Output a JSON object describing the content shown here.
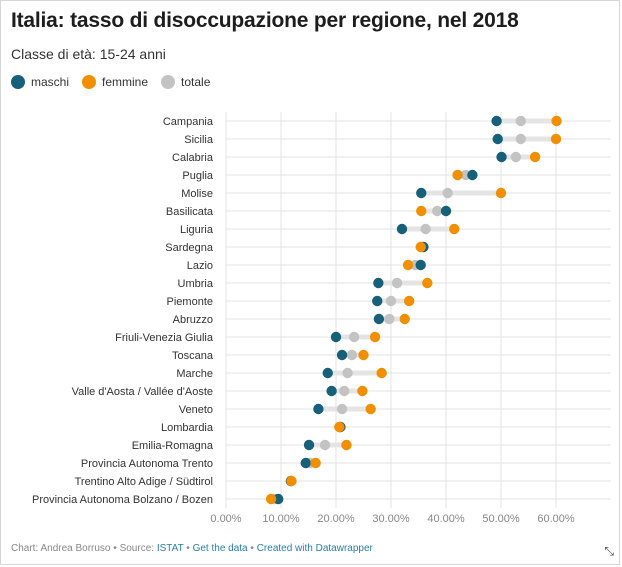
{
  "title": "Italia: tasso di disoccupazione per regione, nel 2018",
  "subtitle": "Classe di età: 15-24 anni",
  "footer": {
    "credit": "Chart: Andrea Borruso",
    "source_prefix": "Source:",
    "source_link": "ISTAT",
    "get_data": "Get the data",
    "created_with": "Created with Datawrapper",
    "sep": "•"
  },
  "colors": {
    "maschi": "#17607a",
    "femmine": "#f18f01",
    "totale": "#c3c3c3",
    "range_line": "#e4e4e4",
    "grid": "#e3e3e3"
  },
  "chart_data": {
    "type": "dot-range",
    "title": "Italia: tasso di disoccupazione per regione, nel 2018",
    "subtitle": "Classe di età: 15-24 anni",
    "xlim": [
      0,
      70
    ],
    "x_ticks": [
      0,
      10,
      20,
      30,
      40,
      50,
      60
    ],
    "x_tick_labels": [
      "0.00%",
      "10.00%",
      "20.00%",
      "30.00%",
      "40.00%",
      "50.00%",
      "60.00%"
    ],
    "grid": true,
    "legend": "top-left",
    "series": [
      {
        "name": "maschi",
        "key": "maschi",
        "color": "#17607a"
      },
      {
        "name": "femmine",
        "key": "femmine",
        "color": "#f18f01"
      },
      {
        "name": "totale",
        "key": "totale",
        "color": "#c3c3c3"
      }
    ],
    "categories": [
      "Campania",
      "Sicilia",
      "Calabria",
      "Puglia",
      "Molise",
      "Basilicata",
      "Liguria",
      "Sardegna",
      "Lazio",
      "Umbria",
      "Piemonte",
      "Abruzzo",
      "Friuli-Venezia Giulia",
      "Toscana",
      "Marche",
      "Valle d'Aosta / Vallée d'Aoste",
      "Veneto",
      "Lombardia",
      "Emilia-Romagna",
      "Provincia Autonoma Trento",
      "Trentino Alto Adige / Südtirol",
      "Provincia Autonoma Bolzano / Bozen"
    ],
    "rows": [
      {
        "maschi": 49.2,
        "femmine": 60.1,
        "totale": 53.6
      },
      {
        "maschi": 49.4,
        "femmine": 60.0,
        "totale": 53.6
      },
      {
        "maschi": 50.1,
        "femmine": 56.2,
        "totale": 52.7
      },
      {
        "maschi": 44.8,
        "femmine": 42.1,
        "totale": 43.6
      },
      {
        "maschi": 35.5,
        "femmine": 50.0,
        "totale": 40.3
      },
      {
        "maschi": 40.0,
        "femmine": 35.5,
        "totale": 38.4
      },
      {
        "maschi": 32.0,
        "femmine": 41.5,
        "totale": 36.3
      },
      {
        "maschi": 35.9,
        "femmine": 35.4,
        "totale": 35.6
      },
      {
        "maschi": 35.4,
        "femmine": 33.1,
        "totale": 34.4
      },
      {
        "maschi": 27.7,
        "femmine": 36.6,
        "totale": 31.1
      },
      {
        "maschi": 27.5,
        "femmine": 33.3,
        "totale": 30.0
      },
      {
        "maschi": 27.8,
        "femmine": 32.5,
        "totale": 29.7
      },
      {
        "maschi": 20.0,
        "femmine": 27.1,
        "totale": 23.3
      },
      {
        "maschi": 21.1,
        "femmine": 25.0,
        "totale": 22.9
      },
      {
        "maschi": 18.5,
        "femmine": 28.3,
        "totale": 22.1
      },
      {
        "maschi": 19.2,
        "femmine": 24.8,
        "totale": 21.5
      },
      {
        "maschi": 16.8,
        "femmine": 26.3,
        "totale": 21.1
      },
      {
        "maschi": 20.8,
        "femmine": 20.6,
        "totale": 20.8
      },
      {
        "maschi": 15.1,
        "femmine": 21.9,
        "totale": 18.0
      },
      {
        "maschi": 14.5,
        "femmine": 16.3,
        "totale": 15.3
      },
      {
        "maschi": 11.8,
        "femmine": 11.9,
        "totale": 11.8
      },
      {
        "maschi": 9.5,
        "femmine": 8.2,
        "totale": 8.9
      }
    ]
  }
}
